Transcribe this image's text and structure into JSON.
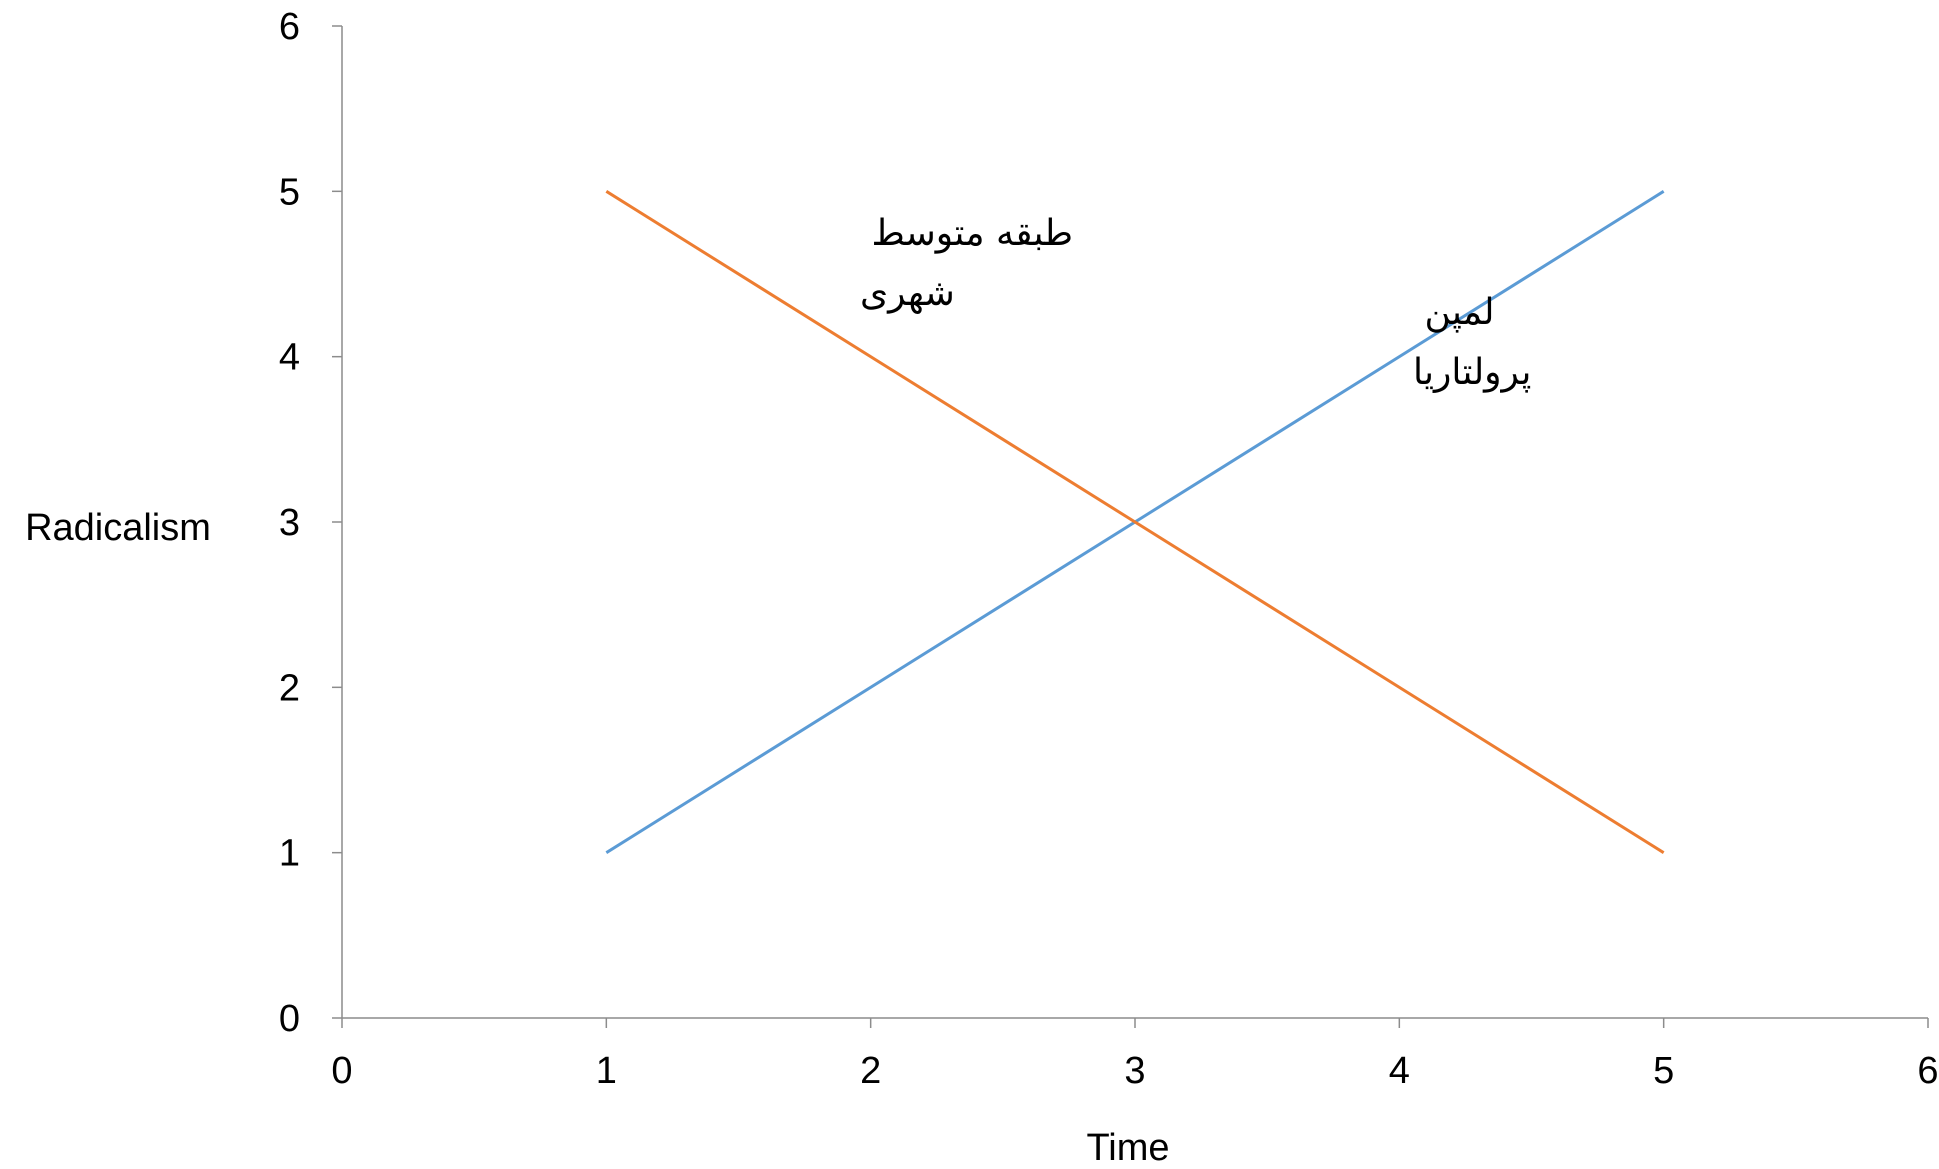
{
  "chart_data": {
    "type": "line",
    "xlabel": "Time",
    "ylabel": "Radicalism",
    "xlim": [
      0,
      6
    ],
    "ylim": [
      0,
      6
    ],
    "xticks": [
      0,
      1,
      2,
      3,
      4,
      5,
      6
    ],
    "yticks": [
      0,
      1,
      2,
      3,
      4,
      5,
      6
    ],
    "grid": false,
    "legend": "none",
    "series": [
      {
        "label_lines": [
          "لمپن",
          "پرولتاریا"
        ],
        "color": "#5b9bd5",
        "points": [
          [
            1,
            1
          ],
          [
            5,
            5
          ]
        ]
      },
      {
        "label_lines": [
          "طبقه متوسط",
          "شهری"
        ],
        "color": "#ed7d31",
        "points": [
          [
            1,
            5
          ],
          [
            5,
            1
          ]
        ]
      }
    ]
  }
}
